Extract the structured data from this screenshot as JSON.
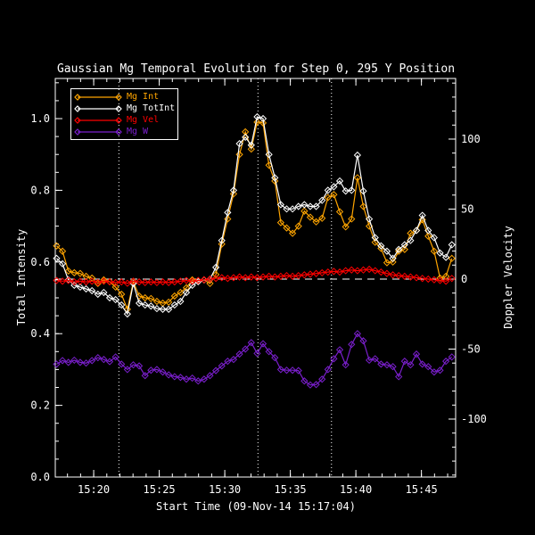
{
  "title": "Gaussian Mg Temporal Evolution for Step 0, 295 Y Position",
  "x_axis": {
    "label": "Start Time (09-Nov-14 15:17:04)",
    "tick_labels": [
      "15:20",
      "15:25",
      "15:30",
      "15:35",
      "15:40",
      "15:45"
    ],
    "tick_minutes": [
      2.93,
      7.93,
      12.93,
      17.93,
      22.93,
      27.93
    ],
    "minor_first_minute": 0.93,
    "minor_step_minutes": 1,
    "range_minutes": [
      0,
      30.54
    ]
  },
  "y_left": {
    "label": "Total Intensity",
    "tick_labels": [
      "0.0",
      "0.2",
      "0.4",
      "0.6",
      "0.8",
      "1.0"
    ],
    "tick_values": [
      0.0,
      0.2,
      0.4,
      0.6,
      0.8,
      1.0
    ],
    "minor_step": 0.05,
    "range": [
      0.0,
      1.112
    ]
  },
  "y_right": {
    "label": "Doppler Velocity",
    "tick_labels": [
      "-100",
      "-50",
      "0",
      "50",
      "100"
    ],
    "tick_values": [
      -100,
      -50,
      0,
      50,
      100
    ],
    "minor_step": 10,
    "range": [
      -141.4,
      143.3
    ]
  },
  "reference_lines": {
    "dashed_horizontal_velocity": 0,
    "dotted_vertical_minutes": [
      4.85,
      15.46,
      21.07
    ]
  },
  "colors": {
    "background": "#000000",
    "axis": "#FFFFFF",
    "mg_int": "#FFA500",
    "mg_totint": "#FFFFFF",
    "mg_vel": "#FF0000",
    "mg_w": "#7A1FCC"
  },
  "chart_data": {
    "type": "line",
    "title": "Gaussian Mg Temporal Evolution for Step 0, 295 Y Position",
    "xlabel": "Start Time (09-Nov-14 15:17:04)",
    "ylabel_left": "Total Intensity",
    "ylabel_right": "Doppler Velocity",
    "legend_position": "upper-left",
    "marker": "open-diamond",
    "x_minutes": [
      0.1,
      0.55,
      1.0,
      1.45,
      1.9,
      2.35,
      2.8,
      3.25,
      3.7,
      4.15,
      4.6,
      5.05,
      5.5,
      5.95,
      6.4,
      6.85,
      7.3,
      7.75,
      8.2,
      8.65,
      9.1,
      9.55,
      10.0,
      10.45,
      10.9,
      11.35,
      11.8,
      12.25,
      12.7,
      13.15,
      13.6,
      14.05,
      14.5,
      14.95,
      15.4,
      15.85,
      16.3,
      16.75,
      17.2,
      17.65,
      18.1,
      18.55,
      19.0,
      19.45,
      19.9,
      20.35,
      20.8,
      21.25,
      21.7,
      22.15,
      22.6,
      23.05,
      23.5,
      23.95,
      24.4,
      24.85,
      25.3,
      25.75,
      26.2,
      26.65,
      27.1,
      27.55,
      28.0,
      28.45,
      28.9,
      29.35,
      29.8,
      30.25
    ],
    "series": [
      {
        "name": "Mg Int",
        "color": "#FFA500",
        "axis": "left",
        "values": [
          0.645,
          0.63,
          0.575,
          0.57,
          0.568,
          0.56,
          0.555,
          0.54,
          0.55,
          0.545,
          0.53,
          0.51,
          0.468,
          0.545,
          0.505,
          0.5,
          0.498,
          0.49,
          0.485,
          0.488,
          0.505,
          0.515,
          0.528,
          0.55,
          0.548,
          0.55,
          0.54,
          0.565,
          0.65,
          0.72,
          0.79,
          0.9,
          0.963,
          0.915,
          0.99,
          0.988,
          0.87,
          0.826,
          0.71,
          0.695,
          0.68,
          0.7,
          0.742,
          0.725,
          0.712,
          0.722,
          0.78,
          0.788,
          0.74,
          0.698,
          0.72,
          0.835,
          0.755,
          0.7,
          0.655,
          0.638,
          0.598,
          0.6,
          0.63,
          0.635,
          0.68,
          0.688,
          0.718,
          0.672,
          0.63,
          0.555,
          0.56,
          0.61
        ]
      },
      {
        "name": "Mg TotInt",
        "color": "#FFFFFF",
        "axis": "left",
        "values": [
          0.61,
          0.595,
          0.55,
          0.535,
          0.53,
          0.525,
          0.52,
          0.51,
          0.515,
          0.5,
          0.495,
          0.48,
          0.455,
          0.54,
          0.485,
          0.48,
          0.477,
          0.47,
          0.468,
          0.468,
          0.48,
          0.49,
          0.515,
          0.535,
          0.545,
          0.55,
          0.552,
          0.585,
          0.66,
          0.738,
          0.8,
          0.93,
          0.948,
          0.926,
          1.005,
          1.0,
          0.9,
          0.835,
          0.76,
          0.748,
          0.748,
          0.755,
          0.76,
          0.755,
          0.755,
          0.772,
          0.8,
          0.81,
          0.826,
          0.798,
          0.8,
          0.898,
          0.798,
          0.72,
          0.668,
          0.645,
          0.63,
          0.61,
          0.635,
          0.648,
          0.66,
          0.688,
          0.73,
          0.688,
          0.668,
          0.625,
          0.613,
          0.648
        ]
      },
      {
        "name": "Mg Vel",
        "color": "#FF0000",
        "axis": "right",
        "values": [
          -1.0,
          -1.5,
          -1.0,
          -2.0,
          -1.5,
          -2.0,
          -1.5,
          -2.5,
          -1.5,
          -2.0,
          -2.5,
          -2.0,
          -3.0,
          -1.5,
          -2.0,
          -2.5,
          -2.0,
          -2.5,
          -2.0,
          -2.5,
          -2.0,
          -1.5,
          -1.0,
          -1.5,
          -1.0,
          -0.5,
          0.0,
          0.5,
          1.0,
          0.5,
          1.0,
          1.5,
          1.0,
          1.5,
          1.0,
          1.5,
          2.0,
          1.5,
          2.0,
          2.5,
          2.0,
          2.5,
          3.0,
          3.5,
          4.0,
          4.5,
          5.0,
          5.5,
          5.0,
          6.0,
          6.5,
          6.0,
          6.5,
          7.0,
          6.0,
          5.0,
          4.0,
          3.0,
          2.5,
          2.0,
          1.5,
          1.0,
          0.5,
          0.0,
          -0.5,
          -1.0,
          -1.5,
          0.5
        ]
      },
      {
        "name": "Mg W",
        "color": "#7A1FCC",
        "axis": "left",
        "values": [
          0.315,
          0.325,
          0.32,
          0.326,
          0.32,
          0.318,
          0.325,
          0.333,
          0.328,
          0.322,
          0.335,
          0.315,
          0.3,
          0.313,
          0.31,
          0.283,
          0.298,
          0.3,
          0.293,
          0.285,
          0.28,
          0.278,
          0.273,
          0.276,
          0.268,
          0.273,
          0.283,
          0.297,
          0.31,
          0.323,
          0.328,
          0.343,
          0.357,
          0.375,
          0.345,
          0.372,
          0.35,
          0.333,
          0.3,
          0.298,
          0.298,
          0.297,
          0.268,
          0.257,
          0.258,
          0.273,
          0.3,
          0.33,
          0.355,
          0.313,
          0.37,
          0.4,
          0.38,
          0.326,
          0.33,
          0.315,
          0.313,
          0.308,
          0.28,
          0.323,
          0.313,
          0.343,
          0.315,
          0.308,
          0.293,
          0.298,
          0.323,
          0.335
        ]
      }
    ]
  }
}
